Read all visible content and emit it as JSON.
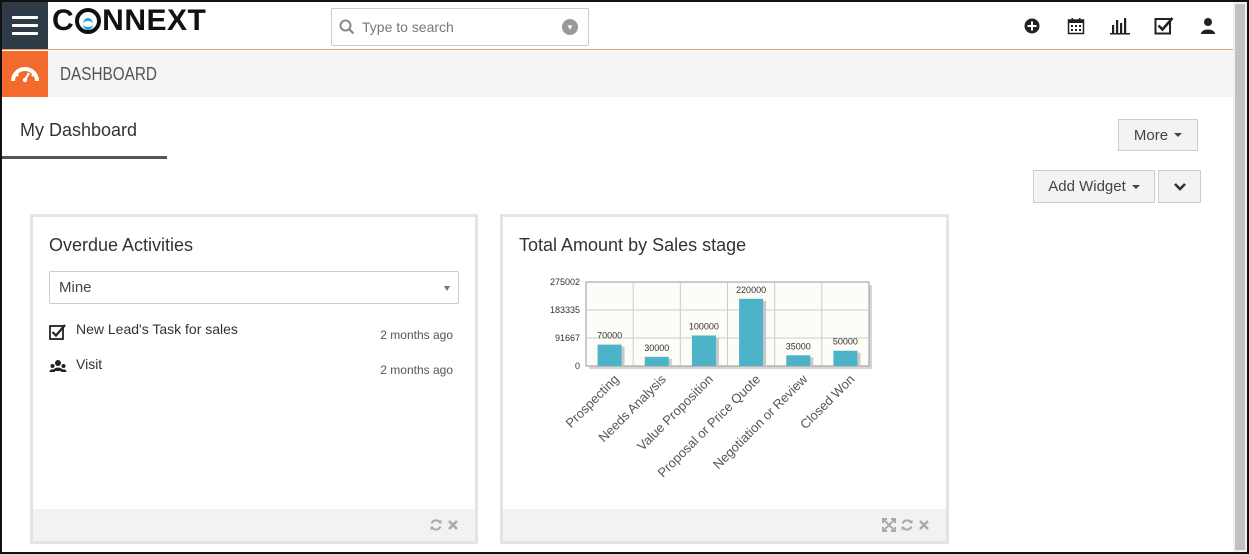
{
  "header": {
    "logo_text": "CONNEXT",
    "search": {
      "placeholder": "Type to search"
    },
    "icons": [
      "plus-circle-icon",
      "calendar-icon",
      "bar-chart-icon",
      "checkbox-icon",
      "user-icon"
    ]
  },
  "subheader": {
    "title": "DASHBOARD",
    "icon": "dashboard-gauge-icon"
  },
  "tabs": [
    {
      "label": "My Dashboard",
      "active": true
    }
  ],
  "buttons": {
    "more": "More",
    "add_widget": "Add Widget"
  },
  "widgets": {
    "overdue": {
      "title": "Overdue Activities",
      "filter_value": "Mine",
      "items": [
        {
          "name": "New Lead's Task for sales",
          "when": "2 months ago",
          "icon": "task-check-icon"
        },
        {
          "name": "Visit",
          "when": "2 months ago",
          "icon": "meeting-people-icon"
        }
      ]
    },
    "sales_stage": {
      "title": "Total Amount by Sales stage"
    }
  },
  "colors": {
    "accent": "#f26b2d",
    "nav_dark": "#2f3a47",
    "bar": "#4cb3c8"
  },
  "chart_data": {
    "type": "bar",
    "title": "Total Amount by Sales stage",
    "categories": [
      "Prospecting",
      "Needs Analysis",
      "Value Proposition",
      "Proposal or Price Quote",
      "Negotiation or Review",
      "Closed Won"
    ],
    "values": [
      70000,
      30000,
      100000,
      220000,
      35000,
      50000
    ],
    "data_labels": [
      "70000",
      "30000",
      "100000",
      "220000",
      "35000",
      "50000"
    ],
    "yticks": [
      0,
      91667,
      183335,
      275002
    ],
    "ytick_labels": [
      "0",
      "91667",
      "183335",
      "275002"
    ],
    "ylim": [
      0,
      275002
    ],
    "xlabel": "",
    "ylabel": "",
    "grid": true
  }
}
